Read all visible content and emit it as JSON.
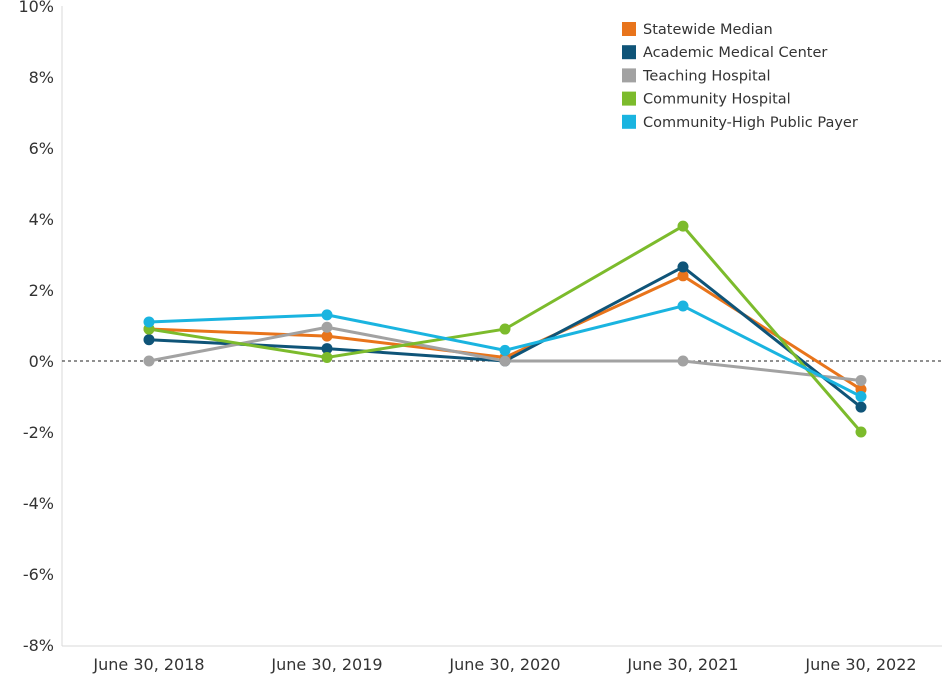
{
  "chart_data": {
    "type": "line",
    "title": "",
    "xlabel": "",
    "ylabel": "",
    "categories": [
      "June 30, 2018",
      "June 30, 2019",
      "June 30, 2020",
      "June 30, 2021",
      "June 30, 2022"
    ],
    "ylim": [
      -8.5,
      10.2
    ],
    "y_ticks": [
      -8,
      -6,
      -4,
      -2,
      0,
      2,
      4,
      6,
      8,
      10
    ],
    "y_tick_labels": [
      "-8%",
      "-6%",
      "-4%",
      "-2%",
      "0%",
      "2%",
      "4%",
      "6%",
      "8%",
      "10%"
    ],
    "zero_line": "dashed",
    "grid": false,
    "legend_position": "top-right",
    "series": [
      {
        "name": "Statewide Median",
        "color": "#E8741B",
        "values": [
          0.9,
          0.7,
          0.1,
          2.4,
          -0.8
        ]
      },
      {
        "name": "Academic Medical Center",
        "color": "#0F5478",
        "values": [
          0.6,
          0.35,
          0.0,
          2.65,
          -1.3
        ]
      },
      {
        "name": "Teaching Hospital",
        "color": "#A2A2A2",
        "values": [
          0.0,
          0.95,
          0.0,
          0.0,
          -0.55
        ]
      },
      {
        "name": "Community Hospital",
        "color": "#7CBB2C",
        "values": [
          0.9,
          0.1,
          0.9,
          3.8,
          -2.0
        ]
      },
      {
        "name": "Community-High Public Payer",
        "color": "#1AB4E0",
        "values": [
          1.1,
          1.3,
          0.3,
          1.55,
          -1.0
        ]
      }
    ]
  }
}
